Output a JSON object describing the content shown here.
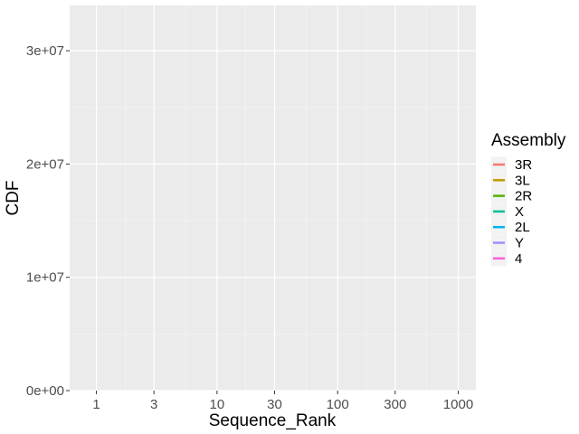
{
  "chart_data": {
    "type": "line",
    "title": "",
    "xlabel": "Sequence_Rank",
    "ylabel": "CDF",
    "x_scale": "log10",
    "xlim": [
      0.6,
      1400
    ],
    "ylim": [
      0,
      34000000
    ],
    "x_ticks": [
      {
        "value": 1,
        "label": "1"
      },
      {
        "value": 3,
        "label": "3"
      },
      {
        "value": 10,
        "label": "10"
      },
      {
        "value": 30,
        "label": "30"
      },
      {
        "value": 100,
        "label": "100"
      },
      {
        "value": 300,
        "label": "300"
      },
      {
        "value": 1000,
        "label": "1000"
      }
    ],
    "y_ticks": [
      {
        "value": 0,
        "label": "0e+00"
      },
      {
        "value": 10000000,
        "label": "1e+07"
      },
      {
        "value": 20000000,
        "label": "2e+07"
      },
      {
        "value": 30000000,
        "label": "3e+07"
      }
    ],
    "grid": true,
    "legend": {
      "title": "Assembly",
      "position": "right",
      "entries": [
        {
          "name": "3R",
          "color": "#F8766D"
        },
        {
          "name": "3L",
          "color": "#C49A00"
        },
        {
          "name": "2R",
          "color": "#53B400"
        },
        {
          "name": "X",
          "color": "#00C094"
        },
        {
          "name": "2L",
          "color": "#00B6EB"
        },
        {
          "name": "Y",
          "color": "#A58AFF"
        },
        {
          "name": "4",
          "color": "#FB61D7"
        }
      ]
    },
    "series": []
  }
}
